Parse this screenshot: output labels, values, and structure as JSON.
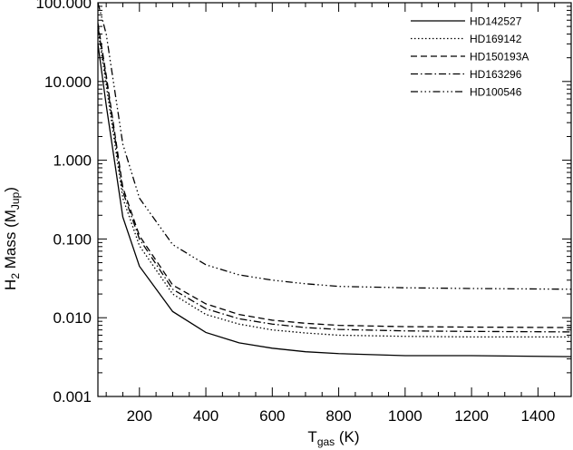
{
  "chart_data": {
    "type": "line",
    "xlabel_main": "T",
    "xlabel_sub": "gas",
    "xlabel_unit": " (K)",
    "ylabel_pre": "H",
    "ylabel_sub": "2",
    "ylabel_mid": " Mass (M",
    "ylabel_sub2": "Jup",
    "ylabel_post": ")",
    "xlim": [
      75,
      1500
    ],
    "ylim": [
      0.001,
      100
    ],
    "yscale": "log",
    "x_ticks": [
      200,
      400,
      600,
      800,
      1000,
      1200,
      1400
    ],
    "x_tick_labels": [
      "200",
      "400",
      "600",
      "800",
      "1000",
      "1200",
      "1400"
    ],
    "y_ticks": [
      0.001,
      0.01,
      0.1,
      1,
      10,
      100
    ],
    "y_tick_labels": [
      "0.001",
      "0.010",
      "0.100",
      "1.000",
      "10.000",
      "100.000"
    ],
    "grid": false,
    "legend_position": "top-right",
    "series": [
      {
        "name": "HD142527",
        "dash": "solid",
        "x": [
          75,
          100,
          150,
          200,
          300,
          400,
          500,
          600,
          700,
          800,
          1000,
          1200,
          1500
        ],
        "y": [
          30,
          5.0,
          0.19,
          0.045,
          0.012,
          0.0065,
          0.0048,
          0.0041,
          0.0037,
          0.0035,
          0.0033,
          0.0033,
          0.0032
        ]
      },
      {
        "name": "HD169142",
        "dash": "dotted",
        "x": [
          75,
          100,
          150,
          200,
          300,
          400,
          500,
          600,
          700,
          800,
          1000,
          1200,
          1500
        ],
        "y": [
          45,
          9.0,
          0.33,
          0.082,
          0.02,
          0.011,
          0.0083,
          0.007,
          0.0064,
          0.006,
          0.0058,
          0.0057,
          0.0057
        ]
      },
      {
        "name": "HD150193A",
        "dash": "dashed",
        "x": [
          75,
          100,
          150,
          200,
          300,
          400,
          500,
          600,
          700,
          800,
          1000,
          1200,
          1500
        ],
        "y": [
          55,
          12.0,
          0.45,
          0.11,
          0.026,
          0.015,
          0.011,
          0.0093,
          0.0085,
          0.008,
          0.0077,
          0.0076,
          0.0075
        ]
      },
      {
        "name": "HD163296",
        "dash": "dashdot",
        "x": [
          75,
          100,
          150,
          200,
          300,
          400,
          500,
          600,
          700,
          800,
          1000,
          1200,
          1500
        ],
        "y": [
          50,
          11.0,
          0.4,
          0.1,
          0.023,
          0.013,
          0.0097,
          0.0083,
          0.0075,
          0.0071,
          0.0068,
          0.0067,
          0.0066
        ]
      },
      {
        "name": "HD100546",
        "dash": "dashdotdotdot",
        "x": [
          75,
          100,
          150,
          200,
          300,
          400,
          500,
          600,
          700,
          800,
          1000,
          1200,
          1500
        ],
        "y": [
          100,
          40.0,
          1.6,
          0.33,
          0.085,
          0.047,
          0.035,
          0.03,
          0.027,
          0.025,
          0.024,
          0.0235,
          0.023
        ]
      }
    ]
  }
}
